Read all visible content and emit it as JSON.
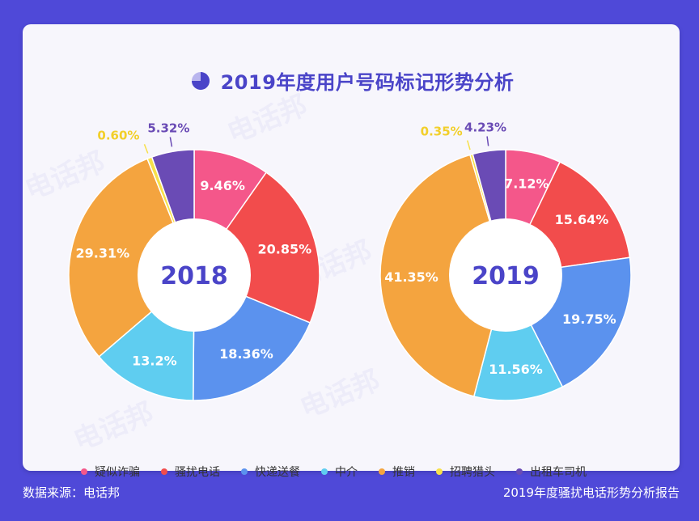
{
  "title": "2019年度用户号码标记形势分析",
  "watermark": "电话邦",
  "footer": {
    "source": "数据来源：电话邦",
    "report": "2019年度骚扰电话形势分析报告"
  },
  "colors": {
    "疑似诈骗": "#f4578a",
    "骚扰电话": "#f24c4c",
    "快递送餐": "#5b92ee",
    "中介": "#5fcdf0",
    "推销": "#f4a43f",
    "招聘猎头": "#f7e04a",
    "出租车司机": "#6a4bb5",
    "accent": "#4a44c8"
  },
  "chart_data": [
    {
      "type": "pie",
      "center_label": "2018",
      "categories": [
        "疑似诈骗",
        "骚扰电话",
        "快递送餐",
        "中介",
        "推销",
        "招聘猎头",
        "出租车司机"
      ],
      "values": [
        9.46,
        20.85,
        18.36,
        13.2,
        29.31,
        0.6,
        5.32
      ],
      "labels": [
        "9.46%",
        "20.85%",
        "18.36%",
        "13.2%",
        "29.31%",
        "0.60%",
        "5.32%"
      ]
    },
    {
      "type": "pie",
      "center_label": "2019",
      "categories": [
        "疑似诈骗",
        "骚扰电话",
        "快递送餐",
        "中介",
        "推销",
        "招聘猎头",
        "出租车司机"
      ],
      "values": [
        7.12,
        15.64,
        19.75,
        11.56,
        41.35,
        0.35,
        4.23
      ],
      "labels": [
        "7.12%",
        "15.64%",
        "19.75%",
        "11.56%",
        "41.35%",
        "0.35%",
        "4.23%"
      ]
    }
  ],
  "legend": [
    "疑似诈骗",
    "骚扰电话",
    "快递送餐",
    "中介",
    "推销",
    "招聘猎头",
    "出租车司机"
  ]
}
